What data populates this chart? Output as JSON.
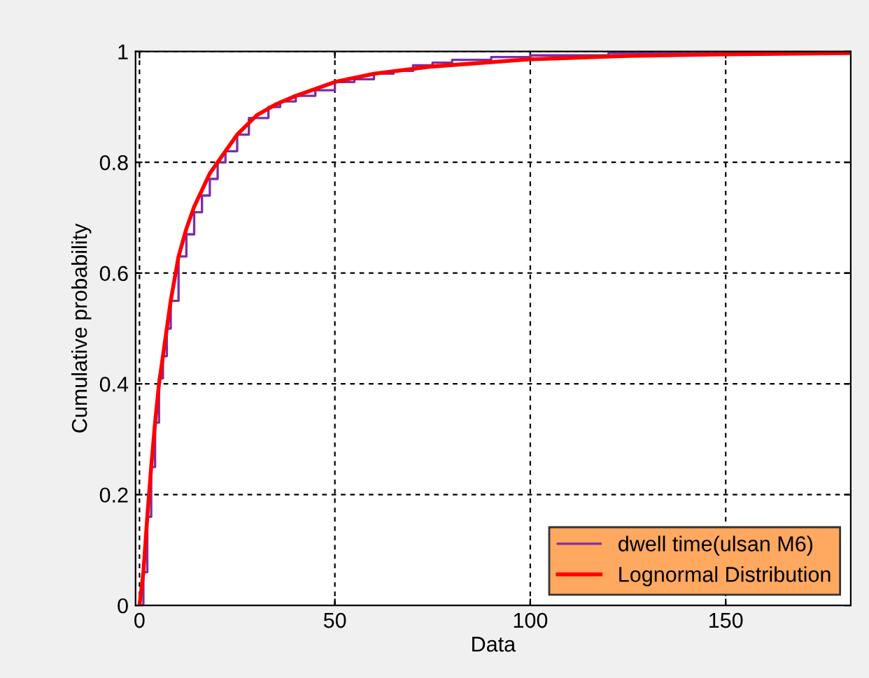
{
  "chart_data": {
    "type": "step",
    "xlabel": "Data",
    "ylabel": "Cumulative probability",
    "xlim": [
      -1,
      182
    ],
    "ylim": [
      0,
      1
    ],
    "xticks": [
      0,
      50,
      100,
      150
    ],
    "yticks": [
      0,
      0.2,
      0.4,
      0.6,
      0.8,
      1
    ],
    "grid": true,
    "legend": "bottom right",
    "series": [
      {
        "name": "dwell time(ulsan M6)",
        "color": "#7b2fa8",
        "x": [
          0,
          1,
          2,
          3,
          4,
          5,
          6,
          7,
          8,
          10,
          12,
          14,
          16,
          18,
          20,
          22,
          25,
          28,
          30,
          33,
          36,
          40,
          45,
          50,
          55,
          60,
          65,
          70,
          75,
          80,
          90,
          100,
          120,
          150,
          182
        ],
        "values": [
          0,
          0.06,
          0.16,
          0.25,
          0.33,
          0.41,
          0.45,
          0.5,
          0.55,
          0.63,
          0.67,
          0.71,
          0.74,
          0.77,
          0.8,
          0.82,
          0.85,
          0.88,
          0.88,
          0.9,
          0.91,
          0.92,
          0.93,
          0.945,
          0.95,
          0.96,
          0.965,
          0.975,
          0.98,
          0.985,
          0.99,
          0.993,
          0.997,
          0.999,
          1.0
        ]
      },
      {
        "name": "Lognormal Distribution",
        "type": "line",
        "color": "#ff0000",
        "x": [
          0,
          1,
          2,
          3,
          4,
          5,
          6,
          7,
          8,
          10,
          12,
          14,
          16,
          18,
          20,
          22,
          25,
          30,
          35,
          40,
          50,
          60,
          75,
          100,
          125,
          150,
          182
        ],
        "values": [
          0,
          0.06,
          0.16,
          0.25,
          0.33,
          0.4,
          0.45,
          0.5,
          0.55,
          0.63,
          0.68,
          0.72,
          0.75,
          0.78,
          0.8,
          0.82,
          0.85,
          0.885,
          0.905,
          0.92,
          0.945,
          0.96,
          0.973,
          0.986,
          0.992,
          0.995,
          0.997
        ]
      }
    ]
  }
}
